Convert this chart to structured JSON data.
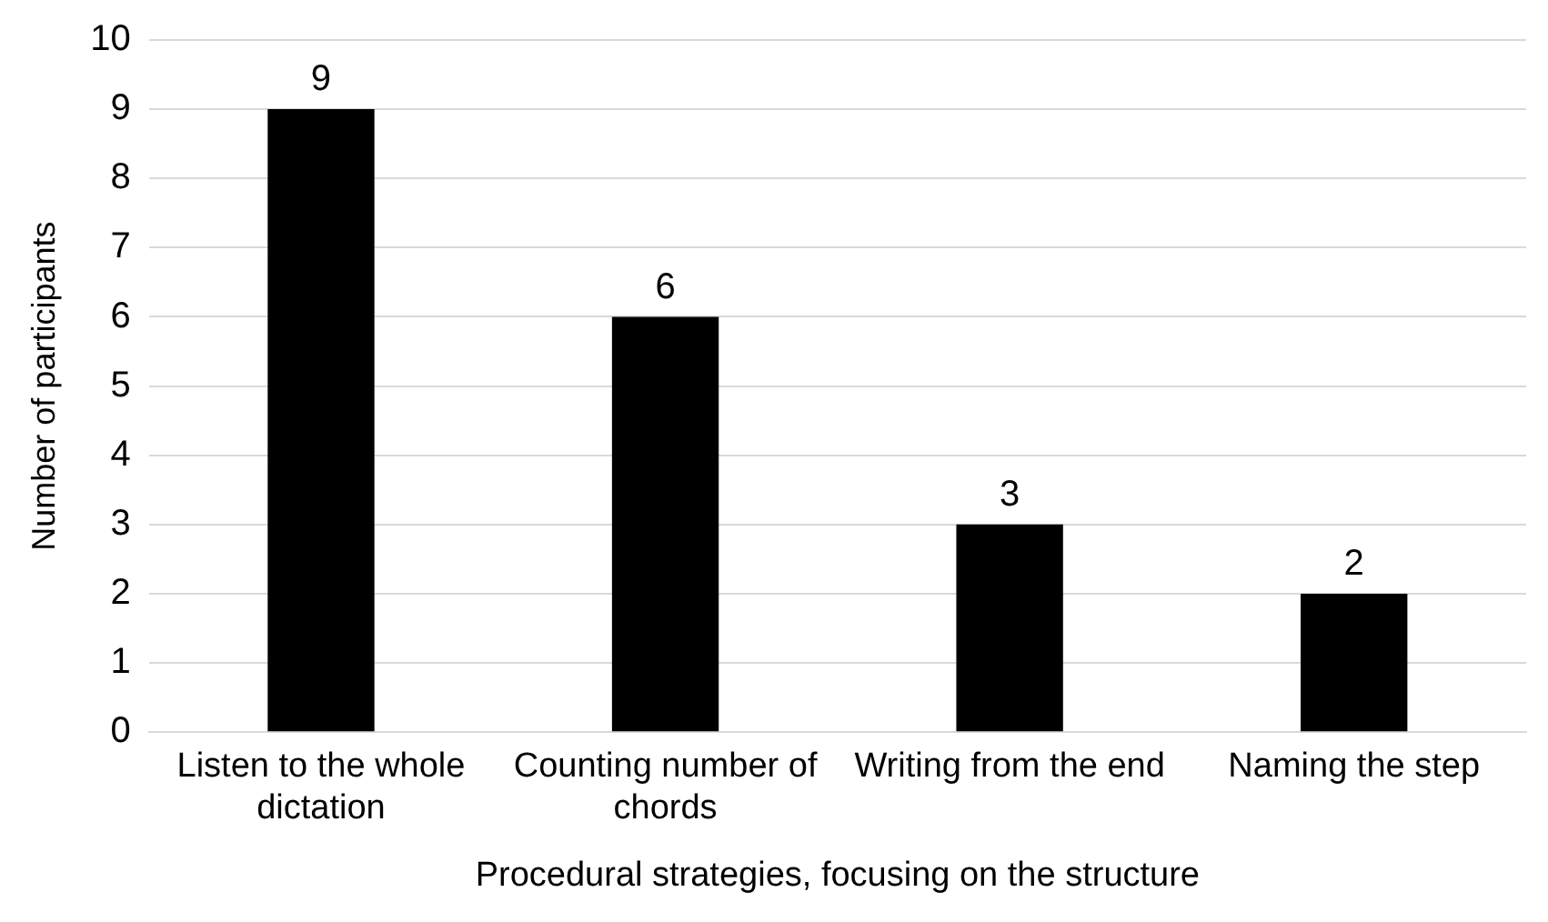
{
  "chart_data": {
    "type": "bar",
    "xlabel": "Procedural strategies, focusing on the structure",
    "ylabel": "Number of participants",
    "categories": [
      "Listen to the whole dictation",
      "Counting number of chords",
      "Writing from the end",
      "Naming the step"
    ],
    "values": [
      9,
      6,
      3,
      2
    ],
    "color": "#000000",
    "ylim": [
      0,
      10
    ],
    "yticks": [
      0,
      1,
      2,
      3,
      4,
      5,
      6,
      7,
      8,
      9,
      10
    ],
    "grid": "y",
    "data_labels": true
  }
}
